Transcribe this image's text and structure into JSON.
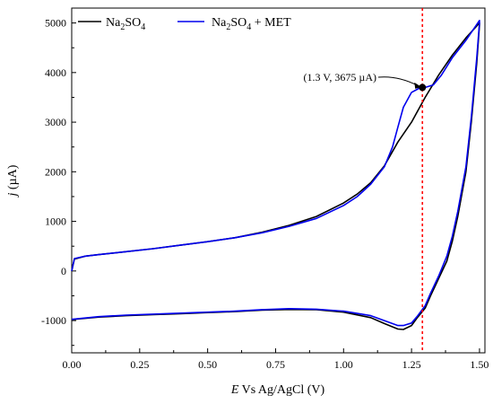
{
  "chart_data": {
    "type": "line",
    "xlabel_italic": "E",
    "xlabel_rest": " Vs Ag/AgCl (V)",
    "ylabel_italic": "j",
    "ylabel_rest": " (µA)",
    "xlim": [
      0.0,
      1.52
    ],
    "ylim": [
      -1650,
      5300
    ],
    "x_ticks": [
      {
        "value": 0.0,
        "label": "0.00"
      },
      {
        "value": 0.25,
        "label": "0.25"
      },
      {
        "value": 0.5,
        "label": "0.50"
      },
      {
        "value": 0.75,
        "label": "0.75"
      },
      {
        "value": 1.0,
        "label": "1.00"
      },
      {
        "value": 1.25,
        "label": "1.25"
      },
      {
        "value": 1.5,
        "label": "1.50"
      }
    ],
    "y_ticks": [
      {
        "value": -1000,
        "label": "-1000"
      },
      {
        "value": 0,
        "label": "0"
      },
      {
        "value": 1000,
        "label": "1000"
      },
      {
        "value": 2000,
        "label": "2000"
      },
      {
        "value": 3000,
        "label": "3000"
      },
      {
        "value": 4000,
        "label": "4000"
      },
      {
        "value": 5000,
        "label": "5000"
      }
    ],
    "vline_x": 1.29,
    "marker": {
      "x": 1.29,
      "y": 3700,
      "label": "(1.3 V, 3675 µA)"
    },
    "legend": {
      "position": "top-left"
    },
    "series": [
      {
        "name_main": "Na",
        "name_sub1": "2",
        "name_mid": "SO",
        "name_sub2": "4",
        "name_tail": "",
        "color": "#000000",
        "forward": [
          [
            0.0,
            0
          ],
          [
            0.01,
            240
          ],
          [
            0.05,
            300
          ],
          [
            0.1,
            330
          ],
          [
            0.2,
            390
          ],
          [
            0.3,
            450
          ],
          [
            0.4,
            520
          ],
          [
            0.5,
            590
          ],
          [
            0.6,
            670
          ],
          [
            0.7,
            780
          ],
          [
            0.8,
            920
          ],
          [
            0.9,
            1100
          ],
          [
            1.0,
            1370
          ],
          [
            1.05,
            1550
          ],
          [
            1.1,
            1780
          ],
          [
            1.15,
            2120
          ],
          [
            1.2,
            2600
          ],
          [
            1.25,
            3000
          ],
          [
            1.3,
            3500
          ],
          [
            1.35,
            3950
          ],
          [
            1.4,
            4350
          ],
          [
            1.45,
            4700
          ],
          [
            1.5,
            5000
          ]
        ],
        "reverse": [
          [
            1.5,
            4950
          ],
          [
            1.49,
            4200
          ],
          [
            1.47,
            3000
          ],
          [
            1.45,
            2000
          ],
          [
            1.42,
            1100
          ],
          [
            1.4,
            600
          ],
          [
            1.38,
            200
          ],
          [
            1.35,
            -150
          ],
          [
            1.32,
            -500
          ],
          [
            1.3,
            -750
          ],
          [
            1.27,
            -950
          ],
          [
            1.25,
            -1100
          ],
          [
            1.22,
            -1180
          ],
          [
            1.2,
            -1170
          ],
          [
            1.15,
            -1060
          ],
          [
            1.1,
            -940
          ],
          [
            1.0,
            -830
          ],
          [
            0.9,
            -780
          ],
          [
            0.8,
            -775
          ],
          [
            0.7,
            -790
          ],
          [
            0.6,
            -820
          ],
          [
            0.5,
            -840
          ],
          [
            0.4,
            -860
          ],
          [
            0.3,
            -880
          ],
          [
            0.2,
            -900
          ],
          [
            0.1,
            -930
          ],
          [
            0.0,
            -980
          ]
        ]
      },
      {
        "name_main": "Na",
        "name_sub1": "2",
        "name_mid": "SO",
        "name_sub2": "4",
        "name_tail": " + MET",
        "color": "#0000ee",
        "forward": [
          [
            0.0,
            0
          ],
          [
            0.01,
            250
          ],
          [
            0.05,
            300
          ],
          [
            0.1,
            330
          ],
          [
            0.2,
            390
          ],
          [
            0.3,
            450
          ],
          [
            0.4,
            520
          ],
          [
            0.5,
            590
          ],
          [
            0.6,
            670
          ],
          [
            0.7,
            770
          ],
          [
            0.8,
            900
          ],
          [
            0.9,
            1060
          ],
          [
            1.0,
            1320
          ],
          [
            1.05,
            1500
          ],
          [
            1.1,
            1750
          ],
          [
            1.15,
            2100
          ],
          [
            1.18,
            2500
          ],
          [
            1.2,
            2900
          ],
          [
            1.22,
            3300
          ],
          [
            1.25,
            3600
          ],
          [
            1.28,
            3690
          ],
          [
            1.3,
            3700
          ],
          [
            1.33,
            3750
          ],
          [
            1.36,
            3950
          ],
          [
            1.4,
            4300
          ],
          [
            1.45,
            4650
          ],
          [
            1.5,
            5050
          ]
        ],
        "reverse": [
          [
            1.5,
            5000
          ],
          [
            1.49,
            4300
          ],
          [
            1.47,
            3100
          ],
          [
            1.45,
            2100
          ],
          [
            1.42,
            1200
          ],
          [
            1.4,
            700
          ],
          [
            1.38,
            300
          ],
          [
            1.35,
            -100
          ],
          [
            1.32,
            -450
          ],
          [
            1.3,
            -700
          ],
          [
            1.27,
            -920
          ],
          [
            1.25,
            -1050
          ],
          [
            1.22,
            -1100
          ],
          [
            1.2,
            -1100
          ],
          [
            1.15,
            -1000
          ],
          [
            1.1,
            -900
          ],
          [
            1.0,
            -810
          ],
          [
            0.9,
            -770
          ],
          [
            0.8,
            -760
          ],
          [
            0.7,
            -780
          ],
          [
            0.6,
            -810
          ],
          [
            0.5,
            -830
          ],
          [
            0.4,
            -850
          ],
          [
            0.3,
            -870
          ],
          [
            0.2,
            -890
          ],
          [
            0.1,
            -920
          ],
          [
            0.0,
            -975
          ]
        ]
      }
    ]
  }
}
